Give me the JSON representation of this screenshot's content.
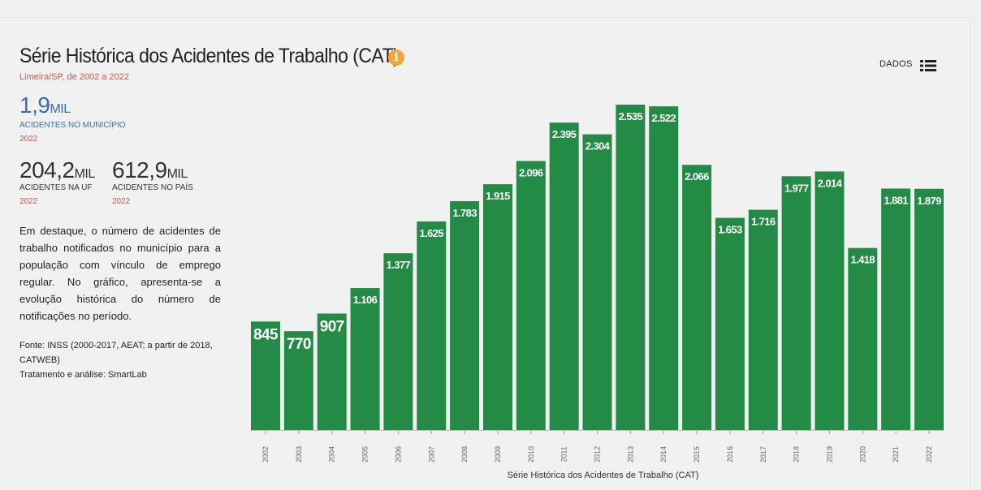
{
  "header": {
    "title": "Série Histórica dos Acidentes de Trabalho (CAT)",
    "subtitle": "Limeira/SP, de 2002 a 2022",
    "data_button_label": "DADOS",
    "info_icon": "info-icon",
    "list_icon": "list-icon"
  },
  "stats": {
    "municipio": {
      "value": "1,9",
      "unit": "MIL",
      "label": "ACIDENTES NO MUNICÍPIO",
      "year": "2022"
    },
    "uf": {
      "value": "204,2",
      "unit": "MIL",
      "label": "ACIDENTES NA UF",
      "year": "2022"
    },
    "pais": {
      "value": "612,9",
      "unit": "MIL",
      "label": "ACIDENTES NO PAÍS",
      "year": "2022"
    }
  },
  "description": "Em destaque, o número de acidentes de trabalho notificados no município para a população com vínculo de emprego regular. No gráfico, apresenta-se a evolução histórica do número de notificações no período.",
  "source": {
    "line1": "Fonte: INSS (2000-2017, AEAT; a partir de 2018, CATWEB)",
    "line2": "Tratamento e análise: SmartLab"
  },
  "colors": {
    "bar": "#238b45",
    "accent_red": "#d9534f",
    "accent_blue": "#3a6cb0",
    "info": "#f0a73a"
  },
  "chart_data": {
    "type": "bar",
    "title": "Série Histórica dos Acidentes de Trabalho (CAT)",
    "xlabel": "Série Histórica dos Acidentes de Trabalho (CAT)",
    "ylabel": "",
    "ylim": [
      0,
      2535
    ],
    "grid": false,
    "categories": [
      "2002",
      "2003",
      "2004",
      "2005",
      "2006",
      "2007",
      "2008",
      "2009",
      "2010",
      "2011",
      "2012",
      "2013",
      "2014",
      "2015",
      "2016",
      "2017",
      "2018",
      "2019",
      "2020",
      "2021",
      "2022"
    ],
    "values": [
      845,
      770,
      907,
      1106,
      1377,
      1625,
      1783,
      1915,
      2096,
      2395,
      2304,
      2535,
      2522,
      2066,
      1653,
      1716,
      1977,
      2014,
      1418,
      1881,
      1879
    ],
    "labels": [
      "845",
      "770",
      "907",
      "1.106",
      "1.377",
      "1.625",
      "1.783",
      "1.915",
      "2.096",
      "2.395",
      "2.304",
      "2.535",
      "2.522",
      "2.066",
      "1.653",
      "1.716",
      "1.977",
      "2.014",
      "1.418",
      "1.881",
      "1.879"
    ]
  }
}
